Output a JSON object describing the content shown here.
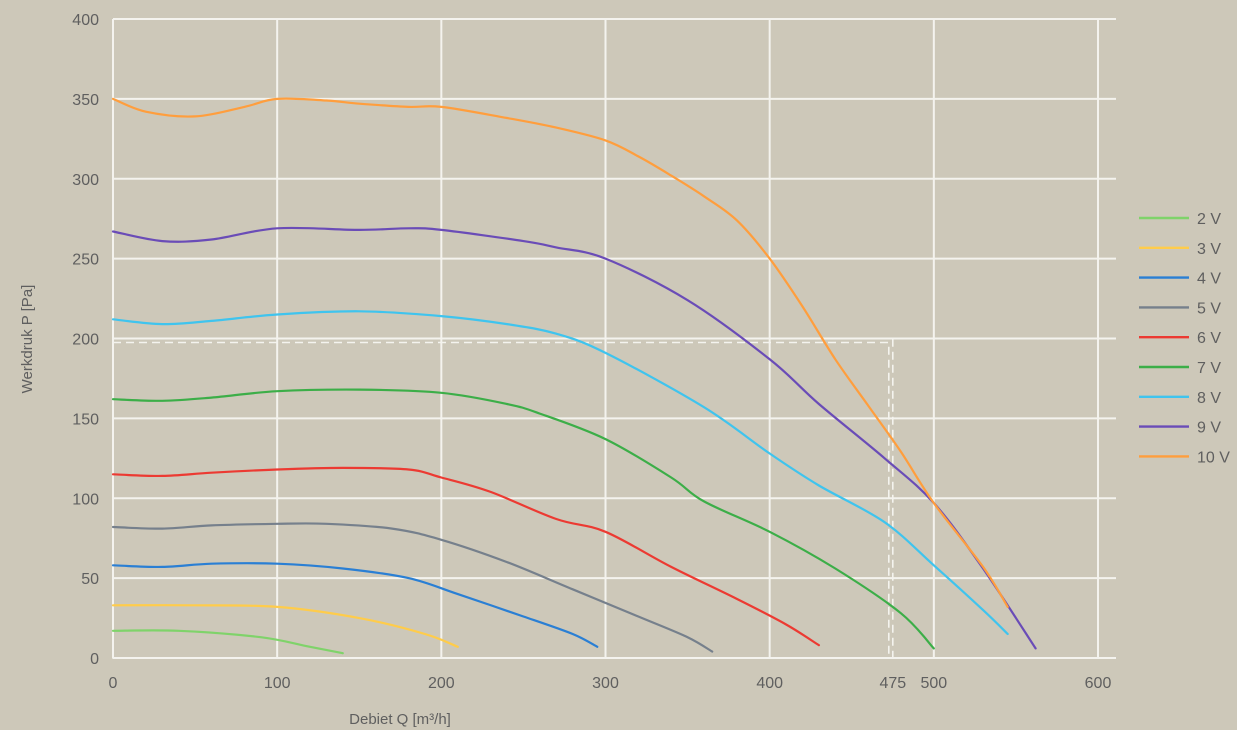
{
  "chart_data": {
    "type": "line",
    "title": "",
    "xlabel": "Debiet Q [m³/h]",
    "ylabel": "Werkdruk P [Pa]",
    "xlim": [
      0,
      600
    ],
    "ylim": [
      0,
      400
    ],
    "xticks": [
      0,
      100,
      200,
      300,
      400,
      475,
      500,
      600
    ],
    "yticks": [
      0,
      50,
      100,
      150,
      200,
      250,
      300,
      350,
      400
    ],
    "grid": true,
    "legend_position": "right",
    "reference_box": {
      "x_max": 475,
      "y_max": 200
    },
    "series": [
      {
        "name": "2 V",
        "color": "#7fd36a",
        "x": [
          0,
          40,
          90,
          120,
          140
        ],
        "y": [
          17,
          17,
          13,
          7,
          3
        ]
      },
      {
        "name": "3 V",
        "color": "#ffcc4a",
        "x": [
          0,
          50,
          100,
          150,
          190,
          210
        ],
        "y": [
          33,
          33,
          32,
          25,
          15,
          7
        ]
      },
      {
        "name": "4 V",
        "color": "#2a7fd4",
        "x": [
          0,
          30,
          60,
          100,
          140,
          180,
          210,
          250,
          280,
          295
        ],
        "y": [
          58,
          57,
          59,
          59,
          56,
          50,
          40,
          26,
          15,
          7
        ]
      },
      {
        "name": "5 V",
        "color": "#76808c",
        "x": [
          0,
          30,
          60,
          100,
          130,
          170,
          200,
          240,
          280,
          320,
          350,
          365
        ],
        "y": [
          82,
          81,
          83,
          84,
          84,
          81,
          74,
          60,
          43,
          26,
          13,
          4
        ]
      },
      {
        "name": "6 V",
        "color": "#ec3a32",
        "x": [
          0,
          30,
          60,
          100,
          140,
          180,
          200,
          230,
          270,
          300,
          340,
          380,
          410,
          430
        ],
        "y": [
          115,
          114,
          116,
          118,
          119,
          118,
          113,
          104,
          87,
          79,
          57,
          37,
          21,
          8
        ]
      },
      {
        "name": "7 V",
        "color": "#3cae48",
        "x": [
          0,
          30,
          60,
          100,
          150,
          200,
          240,
          260,
          300,
          340,
          360,
          400,
          440,
          480,
          500
        ],
        "y": [
          162,
          161,
          163,
          167,
          168,
          166,
          159,
          153,
          137,
          113,
          98,
          79,
          56,
          28,
          6
        ]
      },
      {
        "name": "8 V",
        "color": "#3fc4ee",
        "x": [
          0,
          30,
          60,
          100,
          150,
          200,
          240,
          270,
          300,
          360,
          400,
          430,
          470,
          500,
          530,
          545
        ],
        "y": [
          212,
          209,
          211,
          215,
          217,
          214,
          209,
          203,
          191,
          157,
          128,
          108,
          85,
          58,
          30,
          15
        ]
      },
      {
        "name": "9 V",
        "color": "#6a4cb7",
        "x": [
          0,
          30,
          60,
          100,
          150,
          180,
          200,
          250,
          270,
          300,
          350,
          400,
          430,
          470,
          500,
          530,
          562
        ],
        "y": [
          267,
          261,
          262,
          269,
          268,
          269,
          268,
          261,
          257,
          250,
          224,
          187,
          159,
          125,
          97,
          56,
          6
        ]
      },
      {
        "name": "10 V",
        "color": "#ff9e3d",
        "x": [
          0,
          20,
          50,
          80,
          100,
          130,
          150,
          180,
          200,
          240,
          270,
          300,
          320,
          340,
          360,
          380,
          400,
          420,
          440,
          460,
          480,
          500,
          530,
          545
        ],
        "y": [
          350,
          342,
          339,
          345,
          350,
          349,
          347,
          345,
          345,
          338,
          332,
          324,
          314,
          302,
          289,
          274,
          250,
          220,
          187,
          158,
          129,
          97,
          57,
          32
        ]
      }
    ]
  }
}
